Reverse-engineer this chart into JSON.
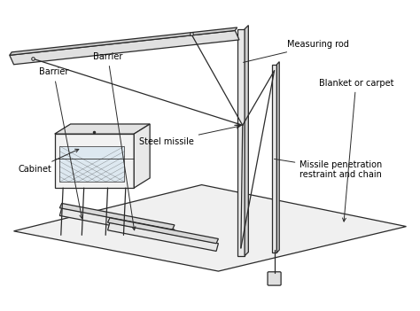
{
  "bg_color": "#ffffff",
  "line_color": "#2a2a2a",
  "labels": {
    "measuring_rod": "Measuring rod",
    "steel_missile": "Steel missile",
    "missile_restraint": "Missile penetration\nrestraint and chain",
    "cabinet": "Cabinet",
    "barrier1": "Barrier",
    "barrier2": "Barrier",
    "blanket": "Blanket or carpet"
  },
  "font_size": 7.0,
  "lw": 0.9
}
